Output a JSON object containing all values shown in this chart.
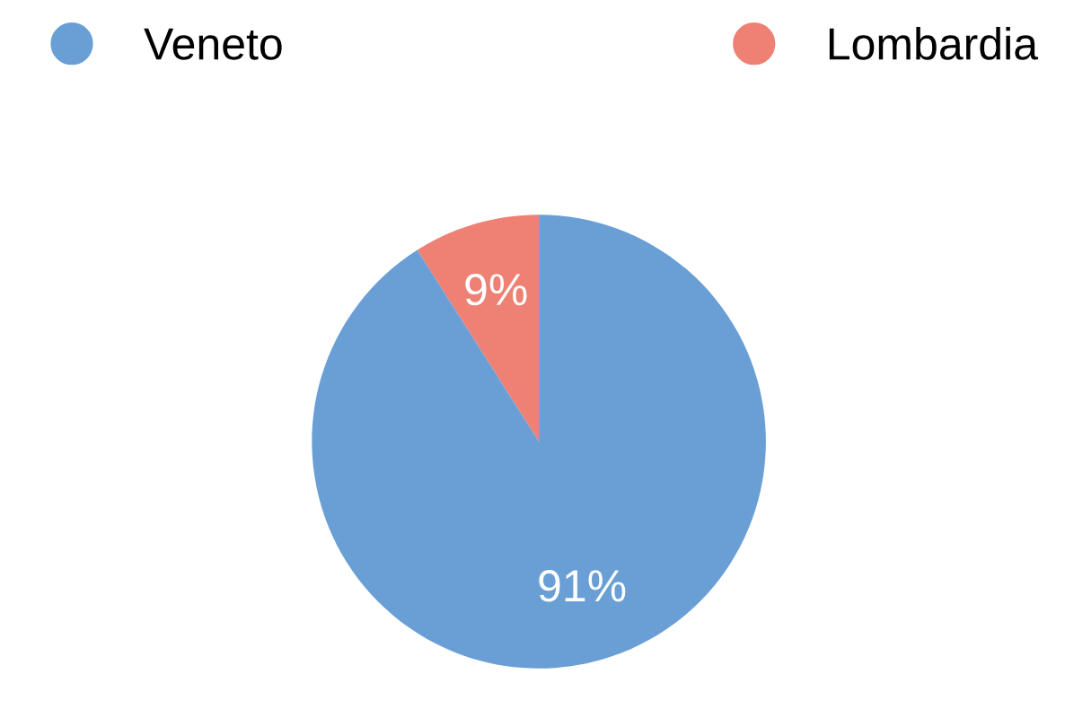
{
  "chart_data": {
    "type": "pie",
    "categories": [
      "Veneto",
      "Lombardia"
    ],
    "values": [
      91,
      9
    ],
    "value_labels": [
      "91%",
      "9%"
    ],
    "colors": [
      "#6a9fd6",
      "#ee8074"
    ],
    "legend": "top"
  }
}
